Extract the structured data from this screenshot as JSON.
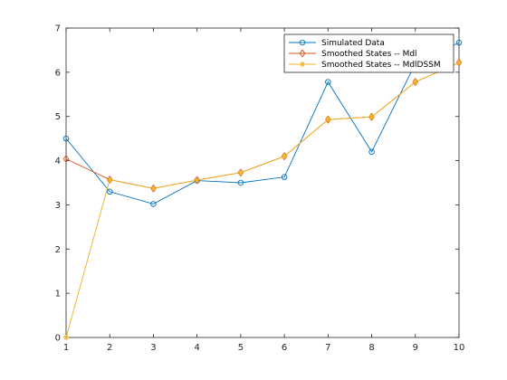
{
  "chart_data": {
    "type": "line",
    "title": "",
    "xlabel": "",
    "ylabel": "",
    "x": [
      1,
      2,
      3,
      4,
      5,
      6,
      7,
      8,
      9,
      10
    ],
    "xlim": [
      1,
      10
    ],
    "ylim": [
      0,
      7
    ],
    "xticks": [
      "1",
      "2",
      "3",
      "4",
      "5",
      "6",
      "7",
      "8",
      "9",
      "10"
    ],
    "yticks": [
      "0",
      "1",
      "2",
      "3",
      "4",
      "5",
      "6",
      "7"
    ],
    "grid": false,
    "legend_position": "top-right",
    "series": [
      {
        "name": "Simulated Data",
        "color": "#0072BD",
        "marker": "circle",
        "values": [
          4.5,
          3.3,
          3.02,
          3.55,
          3.5,
          3.63,
          5.78,
          4.2,
          6.2,
          6.67
        ]
      },
      {
        "name": "Smoothed States -- Mdl",
        "color": "#D95319",
        "marker": "diamond",
        "values": [
          4.04,
          3.57,
          3.37,
          3.56,
          3.73,
          4.1,
          4.93,
          4.99,
          5.78,
          6.22
        ]
      },
      {
        "name": "Smoothed States -- MdlDSSM",
        "color": "#EDB120",
        "marker": "asterisk",
        "values": [
          0.0,
          3.57,
          3.37,
          3.56,
          3.73,
          4.1,
          4.93,
          4.99,
          5.78,
          6.22
        ]
      }
    ]
  }
}
